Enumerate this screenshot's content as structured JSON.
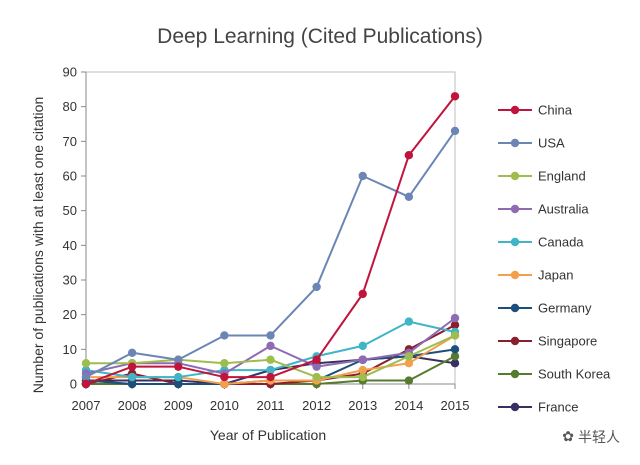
{
  "chart_data": {
    "type": "line",
    "title": "Deep Learning (Cited Publications)",
    "xlabel": "Year of Publication",
    "ylabel": "Number of publications with at least one citation",
    "x": [
      "2007",
      "2008",
      "2009",
      "2010",
      "2011",
      "2012",
      "2013",
      "2014",
      "2015"
    ],
    "ylim": [
      0,
      90
    ],
    "yticks": [
      "0",
      "10",
      "20",
      "30",
      "40",
      "50",
      "60",
      "70",
      "80",
      "90"
    ],
    "legend_position": "right",
    "series": [
      {
        "name": "China",
        "color": "#c0143c",
        "values": [
          0,
          5,
          5,
          2,
          2,
          7,
          26,
          66,
          83
        ]
      },
      {
        "name": "USA",
        "color": "#6b86b5",
        "values": [
          2,
          9,
          7,
          14,
          14,
          28,
          60,
          54,
          73
        ]
      },
      {
        "name": "England",
        "color": "#9ebd4e",
        "values": [
          6,
          6,
          7,
          6,
          7,
          2,
          2,
          8,
          14
        ]
      },
      {
        "name": "Australia",
        "color": "#8e6bb3",
        "values": [
          3,
          6,
          6,
          3,
          11,
          5,
          7,
          9,
          19
        ]
      },
      {
        "name": "Canada",
        "color": "#3fb5c8",
        "values": [
          4,
          2,
          2,
          4,
          4,
          8,
          11,
          18,
          15
        ]
      },
      {
        "name": "Japan",
        "color": "#f3a04c",
        "values": [
          2,
          2,
          2,
          0,
          1,
          1,
          4,
          6,
          14
        ]
      },
      {
        "name": "Germany",
        "color": "#1d4f7c",
        "values": [
          1,
          0,
          0,
          0,
          1,
          1,
          7,
          8,
          10
        ]
      },
      {
        "name": "Singapore",
        "color": "#8b1e2c",
        "values": [
          0,
          3,
          0,
          0,
          0,
          1,
          3,
          10,
          17
        ]
      },
      {
        "name": "South Korea",
        "color": "#567a2e",
        "values": [
          0,
          0,
          0,
          0,
          0,
          0,
          1,
          1,
          8
        ]
      },
      {
        "name": "France",
        "color": "#3a2f63",
        "values": [
          1,
          1,
          1,
          0,
          4,
          6,
          7,
          8,
          6
        ]
      }
    ]
  },
  "watermark": {
    "icon": "✿",
    "text": "半轻人"
  }
}
